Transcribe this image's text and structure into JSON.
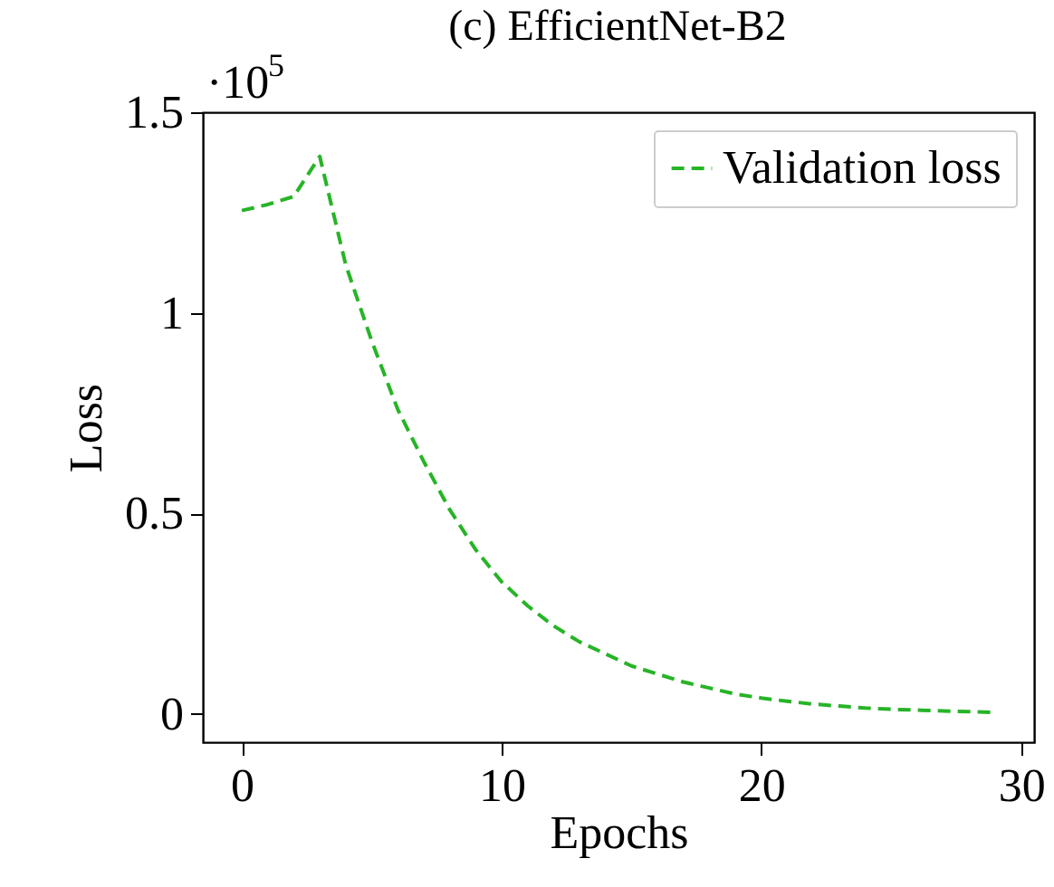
{
  "chart_data": {
    "type": "line",
    "title": "(c) EfficientNet-B2",
    "xlabel": "Epochs",
    "ylabel": "Loss",
    "annotations": [
      "·10$^{5}$"
    ],
    "x": [
      0,
      1,
      2,
      3,
      4,
      5,
      6,
      7,
      8,
      9,
      10,
      11,
      12,
      13,
      14,
      15,
      16,
      17,
      18,
      19,
      20,
      21,
      22,
      23,
      24,
      25,
      26,
      27,
      28,
      29
    ],
    "series": [
      {
        "name": "Validation loss",
        "color": "#27b427",
        "values": [
          1.255,
          1.27,
          1.29,
          1.39,
          1.12,
          0.93,
          0.76,
          0.63,
          0.51,
          0.41,
          0.33,
          0.27,
          0.22,
          0.18,
          0.15,
          0.12,
          0.1,
          0.08,
          0.065,
          0.05,
          0.04,
          0.032,
          0.025,
          0.02,
          0.015,
          0.012,
          0.01,
          0.008,
          0.006,
          0.004
        ]
      }
    ],
    "xlim": [
      -1.5,
      30.5
    ],
    "ylim": [
      -0.07,
      1.5
    ],
    "xticks": [
      0,
      10,
      20,
      30
    ],
    "yticks": [
      0,
      0.5,
      1,
      1.5
    ],
    "legend": "top right",
    "line_style": "dashed",
    "marker": "none"
  }
}
